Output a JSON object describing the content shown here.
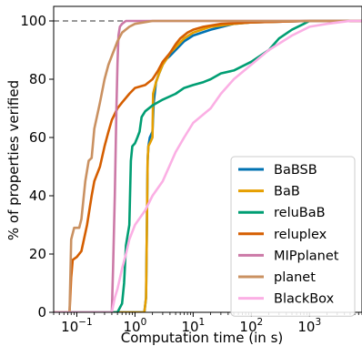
{
  "chart_data": {
    "type": "line",
    "title": "",
    "xlabel": "Computation time (in s)",
    "ylabel": "% of properties verified",
    "x_scale": "log",
    "xlim": [
      0.04,
      8000
    ],
    "ylim": [
      0,
      105
    ],
    "x_ticks": [
      {
        "value": 0.1,
        "base": "10",
        "exp": "−1"
      },
      {
        "value": 1,
        "base": "10",
        "exp": "0"
      },
      {
        "value": 10,
        "base": "10",
        "exp": "1"
      },
      {
        "value": 100,
        "base": "10",
        "exp": "2"
      },
      {
        "value": 1000,
        "base": "10",
        "exp": "3"
      }
    ],
    "y_ticks": [
      {
        "value": 0,
        "label": "0"
      },
      {
        "value": 20,
        "label": "20"
      },
      {
        "value": 40,
        "label": "40"
      },
      {
        "value": 60,
        "label": "60"
      },
      {
        "value": 80,
        "label": "80"
      },
      {
        "value": 100,
        "label": "100"
      }
    ],
    "reference_line": {
      "y": 100,
      "style": "dashed",
      "color": "#777777"
    },
    "grid": false,
    "legend_position": "lower-right",
    "series": [
      {
        "name": "BaBSB",
        "color": "#0072b2",
        "points": [
          [
            0.04,
            0
          ],
          [
            1.45,
            0
          ],
          [
            1.55,
            5
          ],
          [
            1.6,
            28
          ],
          [
            1.65,
            52
          ],
          [
            1.7,
            57
          ],
          [
            1.8,
            60
          ],
          [
            2.0,
            62
          ],
          [
            2.1,
            72
          ],
          [
            2.3,
            79
          ],
          [
            2.6,
            82
          ],
          [
            3,
            85
          ],
          [
            3.5,
            87
          ],
          [
            4,
            88
          ],
          [
            5,
            90
          ],
          [
            7,
            93
          ],
          [
            10,
            95
          ],
          [
            20,
            97
          ],
          [
            50,
            99
          ],
          [
            100,
            99.5
          ],
          [
            1000,
            100
          ],
          [
            8000,
            100
          ]
        ]
      },
      {
        "name": "BaB",
        "color": "#e69f00",
        "points": [
          [
            0.04,
            0
          ],
          [
            1.45,
            0
          ],
          [
            1.55,
            5
          ],
          [
            1.6,
            28
          ],
          [
            1.65,
            52
          ],
          [
            1.7,
            57
          ],
          [
            1.8,
            58
          ],
          [
            2.0,
            60
          ],
          [
            2.05,
            75
          ],
          [
            2.3,
            79
          ],
          [
            2.6,
            82
          ],
          [
            3,
            85
          ],
          [
            3.5,
            87
          ],
          [
            4,
            89
          ],
          [
            5,
            91
          ],
          [
            7,
            94
          ],
          [
            10,
            96
          ],
          [
            20,
            98
          ],
          [
            50,
            99
          ],
          [
            100,
            99.5
          ],
          [
            1000,
            100
          ],
          [
            8000,
            100
          ]
        ]
      },
      {
        "name": "reluBaB",
        "color": "#009e73",
        "points": [
          [
            0.04,
            0
          ],
          [
            0.5,
            0
          ],
          [
            0.6,
            3
          ],
          [
            0.65,
            10
          ],
          [
            0.7,
            23
          ],
          [
            0.8,
            30
          ],
          [
            0.85,
            52
          ],
          [
            0.9,
            57
          ],
          [
            1,
            58
          ],
          [
            1.1,
            60
          ],
          [
            1.2,
            62
          ],
          [
            1.3,
            67
          ],
          [
            1.5,
            69
          ],
          [
            2,
            71
          ],
          [
            3,
            73
          ],
          [
            5,
            75
          ],
          [
            7,
            77
          ],
          [
            10,
            78
          ],
          [
            15,
            79
          ],
          [
            20,
            80
          ],
          [
            30,
            82
          ],
          [
            50,
            83
          ],
          [
            100,
            86
          ],
          [
            200,
            90
          ],
          [
            300,
            94
          ],
          [
            500,
            97
          ],
          [
            800,
            99
          ],
          [
            1000,
            100
          ],
          [
            8000,
            100
          ]
        ]
      },
      {
        "name": "reluplex",
        "color": "#d55e00",
        "points": [
          [
            0.04,
            0
          ],
          [
            0.075,
            0
          ],
          [
            0.08,
            12
          ],
          [
            0.085,
            18
          ],
          [
            0.1,
            19
          ],
          [
            0.12,
            21
          ],
          [
            0.15,
            30
          ],
          [
            0.18,
            40
          ],
          [
            0.2,
            45
          ],
          [
            0.25,
            50
          ],
          [
            0.3,
            57
          ],
          [
            0.35,
            62
          ],
          [
            0.4,
            66
          ],
          [
            0.5,
            70
          ],
          [
            0.6,
            72
          ],
          [
            0.8,
            75
          ],
          [
            1,
            77
          ],
          [
            1.5,
            78
          ],
          [
            2,
            80
          ],
          [
            2.5,
            83
          ],
          [
            3,
            86
          ],
          [
            4,
            89
          ],
          [
            5,
            92
          ],
          [
            6,
            94
          ],
          [
            8,
            96
          ],
          [
            10,
            97
          ],
          [
            15,
            98
          ],
          [
            30,
            99
          ],
          [
            100,
            99.5
          ],
          [
            1000,
            100
          ],
          [
            8000,
            100
          ]
        ]
      },
      {
        "name": "MIPplanet",
        "color": "#cc79a7",
        "points": [
          [
            0.04,
            0
          ],
          [
            0.4,
            0
          ],
          [
            0.42,
            15
          ],
          [
            0.45,
            40
          ],
          [
            0.48,
            70
          ],
          [
            0.5,
            85
          ],
          [
            0.52,
            95
          ],
          [
            0.55,
            98
          ],
          [
            0.6,
            99
          ],
          [
            0.7,
            100
          ],
          [
            8000,
            100
          ]
        ]
      },
      {
        "name": "planet",
        "color": "#ca9161",
        "points": [
          [
            0.04,
            0
          ],
          [
            0.075,
            0
          ],
          [
            0.08,
            25
          ],
          [
            0.09,
            29
          ],
          [
            0.11,
            29
          ],
          [
            0.12,
            32
          ],
          [
            0.14,
            45
          ],
          [
            0.16,
            52
          ],
          [
            0.18,
            53
          ],
          [
            0.2,
            63
          ],
          [
            0.25,
            72
          ],
          [
            0.3,
            80
          ],
          [
            0.35,
            85
          ],
          [
            0.4,
            88
          ],
          [
            0.5,
            93
          ],
          [
            0.6,
            96
          ],
          [
            0.8,
            98
          ],
          [
            1,
            99
          ],
          [
            2,
            100
          ],
          [
            8000,
            100
          ]
        ]
      },
      {
        "name": "BlackBox",
        "color": "#fbafe4",
        "points": [
          [
            0.04,
            0
          ],
          [
            0.4,
            0
          ],
          [
            0.45,
            5
          ],
          [
            0.5,
            8
          ],
          [
            0.6,
            15
          ],
          [
            0.7,
            20
          ],
          [
            0.8,
            25
          ],
          [
            1,
            30
          ],
          [
            1.5,
            35
          ],
          [
            2,
            40
          ],
          [
            3,
            45
          ],
          [
            5,
            55
          ],
          [
            7,
            60
          ],
          [
            10,
            65
          ],
          [
            20,
            70
          ],
          [
            30,
            75
          ],
          [
            50,
            80
          ],
          [
            100,
            85
          ],
          [
            200,
            90
          ],
          [
            500,
            95
          ],
          [
            1000,
            98
          ],
          [
            2000,
            99
          ],
          [
            5000,
            100
          ],
          [
            8000,
            100
          ]
        ]
      }
    ]
  }
}
